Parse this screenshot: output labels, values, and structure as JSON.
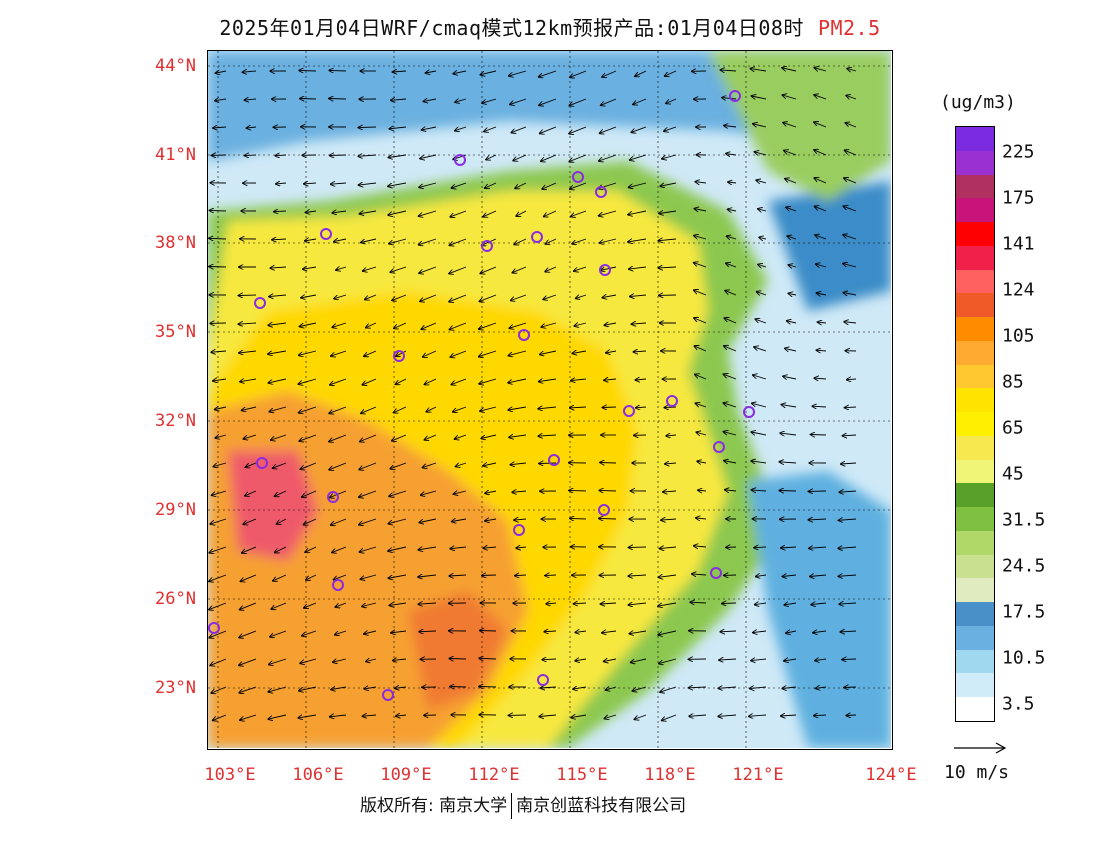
{
  "header": {
    "title": "2025年01月04日WRF/cmaq模式12km预报产品:01月04日08时",
    "variable": "PM2.5"
  },
  "map": {
    "lat_labels": [
      "44°N",
      "41°N",
      "38°N",
      "35°N",
      "32°N",
      "29°N",
      "26°N",
      "23°N"
    ],
    "lon_labels": [
      "103°E",
      "106°E",
      "109°E",
      "112°E",
      "115°E",
      "118°E",
      "121°E",
      "124°E"
    ],
    "palette": {
      "background_sea": "#d7eefa",
      "high_pollution": "#f08a3c",
      "severe": "#e8336a",
      "moderate": "#ffe800",
      "grid": "#000000",
      "station_marker": "#8a2be2",
      "axis_label": "#e03030"
    }
  },
  "legend": {
    "unit": "(ug/m3)",
    "levels": [
      "225",
      "175",
      "141",
      "124",
      "105",
      "85",
      "65",
      "45",
      "31.5",
      "24.5",
      "17.5",
      "10.5",
      "3.5"
    ],
    "colors": [
      "#7a2be0",
      "#9a30d0",
      "#b03060",
      "#c8147a",
      "#ff0000",
      "#f0204a",
      "#ff6060",
      "#f05a28",
      "#ff8c00",
      "#ffaa30",
      "#ffc830",
      "#ffe400",
      "#fff000",
      "#f8e850",
      "#f0f578",
      "#58a028",
      "#80c040",
      "#b0d868",
      "#c8e090",
      "#e0ecc0",
      "#4a90c8",
      "#6ab0e0",
      "#a0d8f0",
      "#d0ecf8",
      "#ffffff"
    ],
    "wind_reference": "10 m/s"
  },
  "footer": {
    "copyright": "版权所有: 南京大学",
    "company": "南京创蓝科技有限公司"
  }
}
